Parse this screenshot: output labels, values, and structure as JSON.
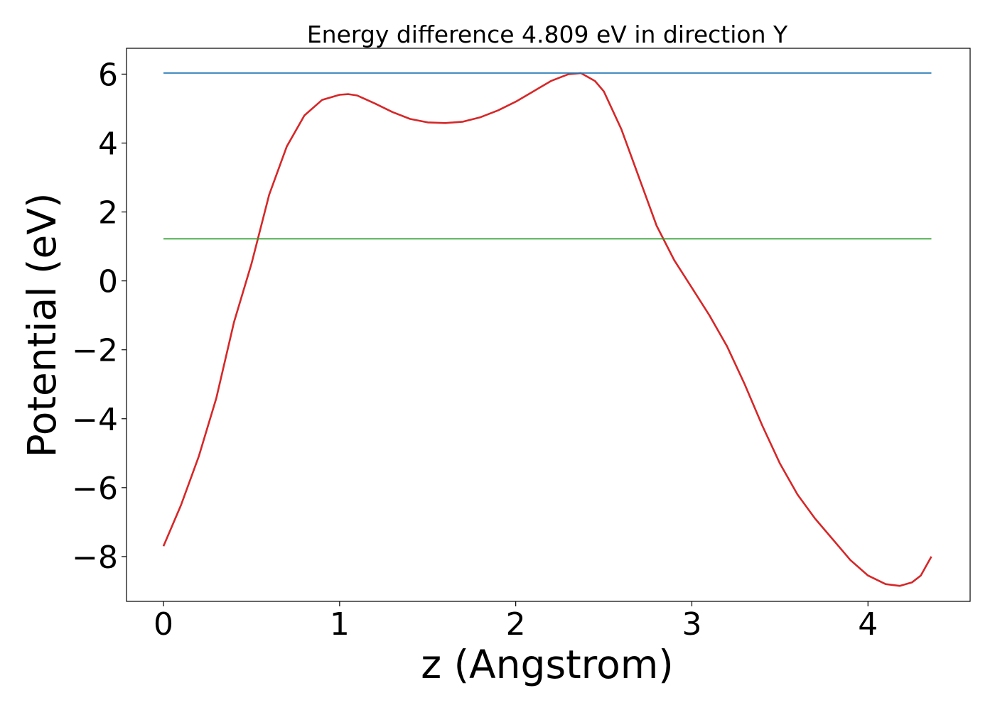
{
  "chart_data": {
    "type": "line",
    "title": "Energy difference 4.809 eV in direction Y",
    "xlabel": "z (Angstrom)",
    "ylabel": "Potential (eV)",
    "xlim": [
      -0.21,
      4.58
    ],
    "ylim": [
      -9.3,
      6.75
    ],
    "xticks": [
      0,
      1,
      2,
      3,
      4
    ],
    "xtick_labels": [
      "0",
      "1",
      "2",
      "3",
      "4"
    ],
    "yticks": [
      6,
      4,
      2,
      0,
      -2,
      -4,
      -6,
      -8
    ],
    "ytick_labels": [
      "6",
      "4",
      "2",
      "0",
      "−2",
      "−4",
      "−6",
      "−8"
    ],
    "grid": false,
    "series": [
      {
        "color": "#d62728",
        "x": [
          0.0,
          0.1,
          0.2,
          0.3,
          0.4,
          0.5,
          0.6,
          0.7,
          0.8,
          0.9,
          1.0,
          1.05,
          1.1,
          1.2,
          1.3,
          1.4,
          1.5,
          1.6,
          1.7,
          1.8,
          1.9,
          2.0,
          2.1,
          2.2,
          2.3,
          2.37,
          2.45,
          2.5,
          2.6,
          2.7,
          2.8,
          2.9,
          3.0,
          3.1,
          3.2,
          3.3,
          3.4,
          3.5,
          3.6,
          3.7,
          3.8,
          3.9,
          4.0,
          4.1,
          4.18,
          4.25,
          4.3,
          4.36
        ],
        "y": [
          -7.7,
          -6.5,
          -5.1,
          -3.4,
          -1.2,
          0.5,
          2.5,
          3.9,
          4.8,
          5.25,
          5.4,
          5.42,
          5.38,
          5.15,
          4.9,
          4.7,
          4.6,
          4.58,
          4.62,
          4.75,
          4.95,
          5.2,
          5.5,
          5.8,
          6.0,
          6.03,
          5.8,
          5.5,
          4.4,
          3.0,
          1.6,
          0.6,
          -0.2,
          -1.0,
          -1.9,
          -3.0,
          -4.2,
          -5.3,
          -6.2,
          -6.9,
          -7.5,
          -8.1,
          -8.55,
          -8.8,
          -8.85,
          -8.75,
          -8.55,
          -8.0
        ]
      },
      {
        "color": "#1f77b4",
        "x": [
          0.0,
          4.36
        ],
        "y": [
          6.03,
          6.03
        ]
      },
      {
        "color": "#2ca02c",
        "x": [
          0.0,
          4.36
        ],
        "y": [
          1.22,
          1.22
        ]
      }
    ]
  }
}
